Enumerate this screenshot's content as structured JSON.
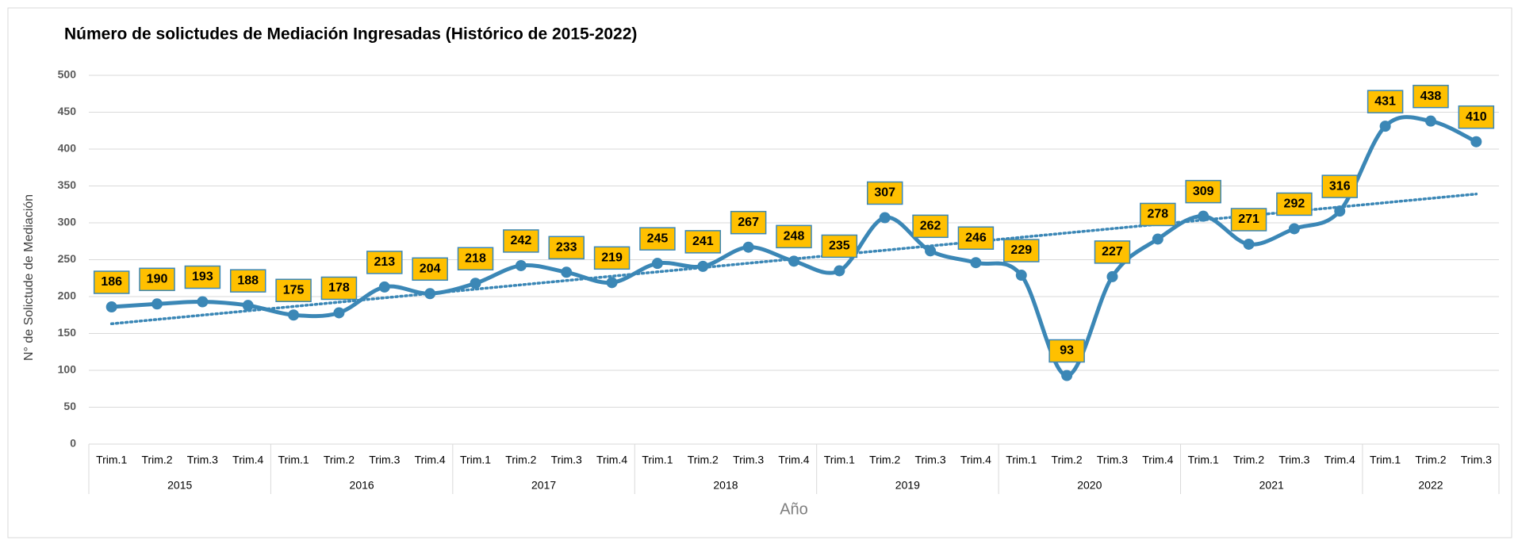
{
  "chart_data": {
    "type": "line",
    "title": "Número de solictudes de Mediación Ingresadas  (Histórico de 2015-2022)",
    "y_label": "N° de Solictude de Mediación",
    "x_label": "Año",
    "groups": [
      {
        "name": "2015",
        "categories": [
          "Trim.1",
          "Trim.2",
          "Trim.3",
          "Trim.4"
        ]
      },
      {
        "name": "2016",
        "categories": [
          "Trim.1",
          "Trim.2",
          "Trim.3",
          "Trim.4"
        ]
      },
      {
        "name": "2017",
        "categories": [
          "Trim.1",
          "Trim.2",
          "Trim.3",
          "Trim.4"
        ]
      },
      {
        "name": "2018",
        "categories": [
          "Trim.1",
          "Trim.2",
          "Trim.3",
          "Trim.4"
        ]
      },
      {
        "name": "2019",
        "categories": [
          "Trim.1",
          "Trim.2",
          "Trim.3",
          "Trim.4"
        ]
      },
      {
        "name": "2020",
        "categories": [
          "Trim.1",
          "Trim.2",
          "Trim.3",
          "Trim.4"
        ]
      },
      {
        "name": "2021",
        "categories": [
          "Trim.1",
          "Trim.2",
          "Trim.3",
          "Trim.4"
        ]
      },
      {
        "name": "2022",
        "categories": [
          "Trim.1",
          "Trim.2",
          "Trim.3"
        ]
      }
    ],
    "series": [
      {
        "color": "#3b87b6",
        "values": [
          186,
          190,
          193,
          188,
          175,
          178,
          213,
          204,
          218,
          242,
          233,
          219,
          245,
          241,
          267,
          248,
          235,
          307,
          262,
          246,
          229,
          93,
          227,
          278,
          309,
          271,
          292,
          316,
          431,
          438,
          410
        ]
      }
    ],
    "label_fill": "#ffc000",
    "trendline": true,
    "smooth": true,
    "ylim": [
      0,
      500
    ],
    "yticks": [
      0,
      50,
      100,
      150,
      200,
      250,
      300,
      350,
      400,
      450,
      500
    ],
    "grid": true
  }
}
